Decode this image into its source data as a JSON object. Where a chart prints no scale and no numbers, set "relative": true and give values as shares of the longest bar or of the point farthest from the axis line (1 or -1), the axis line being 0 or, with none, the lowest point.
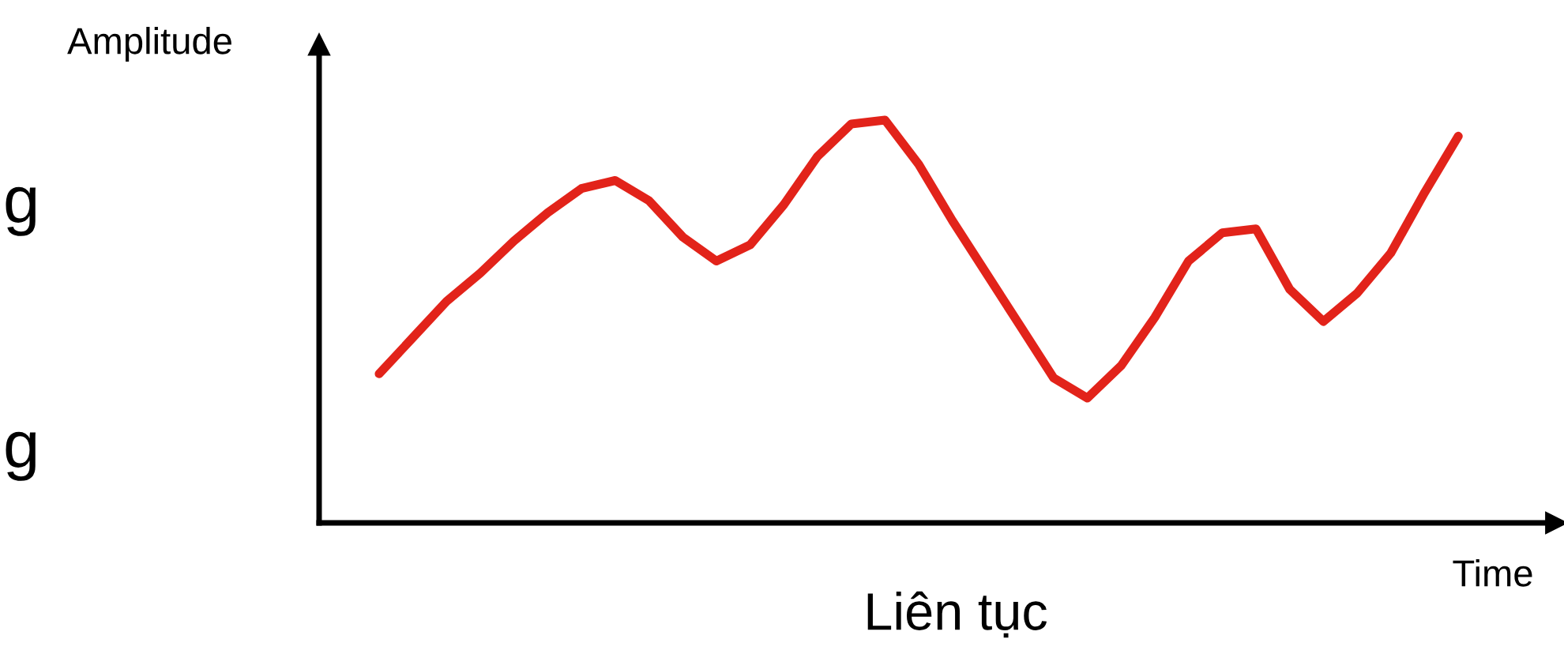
{
  "chart_data": {
    "type": "line",
    "title": "Liên tục",
    "xlabel": "Time",
    "ylabel": "Amplitude",
    "relative": true,
    "legend": false,
    "marker": "none",
    "line_style": "solid",
    "tick_labels": false,
    "annotations": [
      "g",
      "g"
    ],
    "categories": [
      null,
      null,
      null,
      null,
      null,
      null,
      null,
      null,
      null,
      null,
      null,
      null,
      null,
      null,
      null,
      null,
      null,
      null,
      null,
      null,
      null,
      null,
      null,
      null,
      null,
      null,
      null,
      null,
      null,
      null,
      null,
      null,
      null
    ],
    "series": [
      {
        "color": "#e2231a",
        "values": [
          0.37,
          0.46,
          0.55,
          0.62,
          0.7,
          0.77,
          0.83,
          0.85,
          0.8,
          0.71,
          0.65,
          0.69,
          0.79,
          0.91,
          0.99,
          1.0,
          0.89,
          0.75,
          0.62,
          0.49,
          0.36,
          0.31,
          0.39,
          0.51,
          0.65,
          0.72,
          0.73,
          0.58,
          0.5,
          0.57,
          0.67,
          0.82,
          0.96
        ]
      }
    ]
  }
}
